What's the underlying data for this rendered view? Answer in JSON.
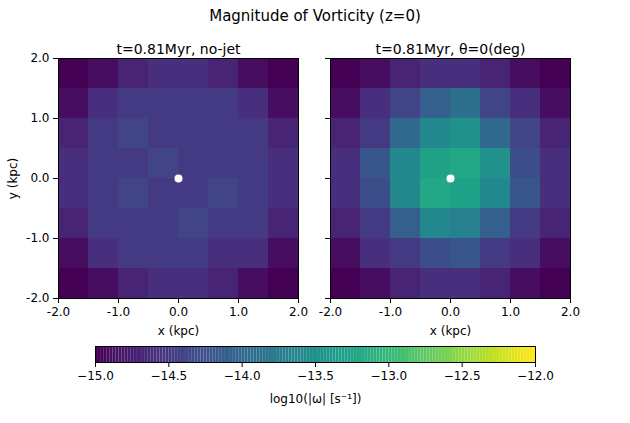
{
  "chart_data": {
    "type": "heatmap",
    "title": "Magnitude of Vorticity (z=0)",
    "panels": [
      {
        "title": "t=0.81Myr, no-jet",
        "x_label": "x (kpc)",
        "y_label": "y (kpc)",
        "xlim": [
          -2,
          2
        ],
        "ylim": [
          -2,
          2
        ],
        "xticks": [
          {
            "value": -2,
            "label": "-2.0"
          },
          {
            "value": -1,
            "label": "-1.0"
          },
          {
            "value": 0,
            "label": "0.0"
          },
          {
            "value": 1,
            "label": "1.0"
          },
          {
            "value": 2,
            "label": "2.0"
          }
        ],
        "yticks": [
          {
            "value": -2,
            "label": "-2.0"
          },
          {
            "value": -1,
            "label": "-1.0"
          },
          {
            "value": 0,
            "label": "0.0"
          },
          {
            "value": 1,
            "label": "1.0"
          },
          {
            "value": 2,
            "label": "2.0"
          }
        ],
        "x_bins": [
          -2,
          -1.5,
          -1,
          -0.5,
          0,
          0.5,
          1,
          1.5,
          2
        ],
        "y_bins": [
          -2,
          -1.5,
          -1,
          -0.5,
          0,
          0.5,
          1,
          1.5,
          2
        ],
        "z": [
          [
            -15.0,
            -14.9,
            -14.7,
            -14.6,
            -14.6,
            -14.7,
            -14.9,
            -15.0
          ],
          [
            -14.9,
            -14.6,
            -14.5,
            -14.5,
            -14.5,
            -14.6,
            -14.6,
            -14.9
          ],
          [
            -14.7,
            -14.5,
            -14.5,
            -14.5,
            -14.4,
            -14.5,
            -14.5,
            -14.7
          ],
          [
            -14.6,
            -14.5,
            -14.4,
            -14.5,
            -14.5,
            -14.4,
            -14.5,
            -14.6
          ],
          [
            -14.6,
            -14.5,
            -14.5,
            -14.4,
            -14.5,
            -14.5,
            -14.5,
            -14.6
          ],
          [
            -14.7,
            -14.5,
            -14.4,
            -14.5,
            -14.5,
            -14.5,
            -14.5,
            -14.7
          ],
          [
            -14.9,
            -14.6,
            -14.5,
            -14.5,
            -14.5,
            -14.5,
            -14.6,
            -14.9
          ],
          [
            -15.0,
            -14.9,
            -14.7,
            -14.6,
            -14.6,
            -14.7,
            -14.9,
            -15.0
          ]
        ]
      },
      {
        "title": "t=0.81Myr, θ=0(deg)",
        "x_label": "x (kpc)",
        "xlim": [
          -2,
          2
        ],
        "ylim": [
          -2,
          2
        ],
        "tick_labels": "x",
        "xticks": [
          {
            "value": -2,
            "label": "-2.0"
          },
          {
            "value": -1,
            "label": "-1.0"
          },
          {
            "value": 0,
            "label": "0.0"
          },
          {
            "value": 1,
            "label": "1.0"
          },
          {
            "value": 2,
            "label": "2.0"
          }
        ],
        "yticks": [
          -2,
          -1,
          0,
          1,
          2
        ],
        "x_bins": [
          -2,
          -1.5,
          -1,
          -0.5,
          0,
          0.5,
          1,
          1.5,
          2
        ],
        "y_bins": [
          -2,
          -1.5,
          -1,
          -0.5,
          0,
          0.5,
          1,
          1.5,
          2
        ],
        "z": [
          [
            -15.0,
            -14.9,
            -14.7,
            -14.6,
            -14.6,
            -14.7,
            -14.9,
            -15.0
          ],
          [
            -14.9,
            -14.6,
            -14.5,
            -14.3,
            -14.2,
            -14.5,
            -14.6,
            -14.9
          ],
          [
            -14.7,
            -14.5,
            -14.1,
            -13.6,
            -13.7,
            -14.1,
            -14.5,
            -14.7
          ],
          [
            -14.6,
            -14.3,
            -13.6,
            -13.2,
            -13.3,
            -13.6,
            -14.2,
            -14.6
          ],
          [
            -14.6,
            -14.2,
            -13.6,
            -13.3,
            -13.2,
            -13.5,
            -14.3,
            -14.6
          ],
          [
            -14.7,
            -14.5,
            -14.0,
            -13.6,
            -13.5,
            -14.0,
            -14.4,
            -14.7
          ],
          [
            -14.9,
            -14.6,
            -14.4,
            -14.1,
            -13.9,
            -14.4,
            -14.6,
            -14.9
          ],
          [
            -15.0,
            -14.9,
            -14.7,
            -14.6,
            -14.6,
            -14.7,
            -14.9,
            -15.0
          ]
        ]
      }
    ],
    "colorbar": {
      "label": "log10(|ω| [s⁻¹])",
      "range": [
        -15,
        -12
      ],
      "ticks": [
        {
          "value": -15,
          "label": "−15.0"
        },
        {
          "value": -14.5,
          "label": "−14.5"
        },
        {
          "value": -14,
          "label": "−14.0"
        },
        {
          "value": -13.5,
          "label": "−13.5"
        },
        {
          "value": -13,
          "label": "−13.0"
        },
        {
          "value": -12.5,
          "label": "−12.5"
        },
        {
          "value": -12,
          "label": "−12.0"
        }
      ]
    }
  }
}
